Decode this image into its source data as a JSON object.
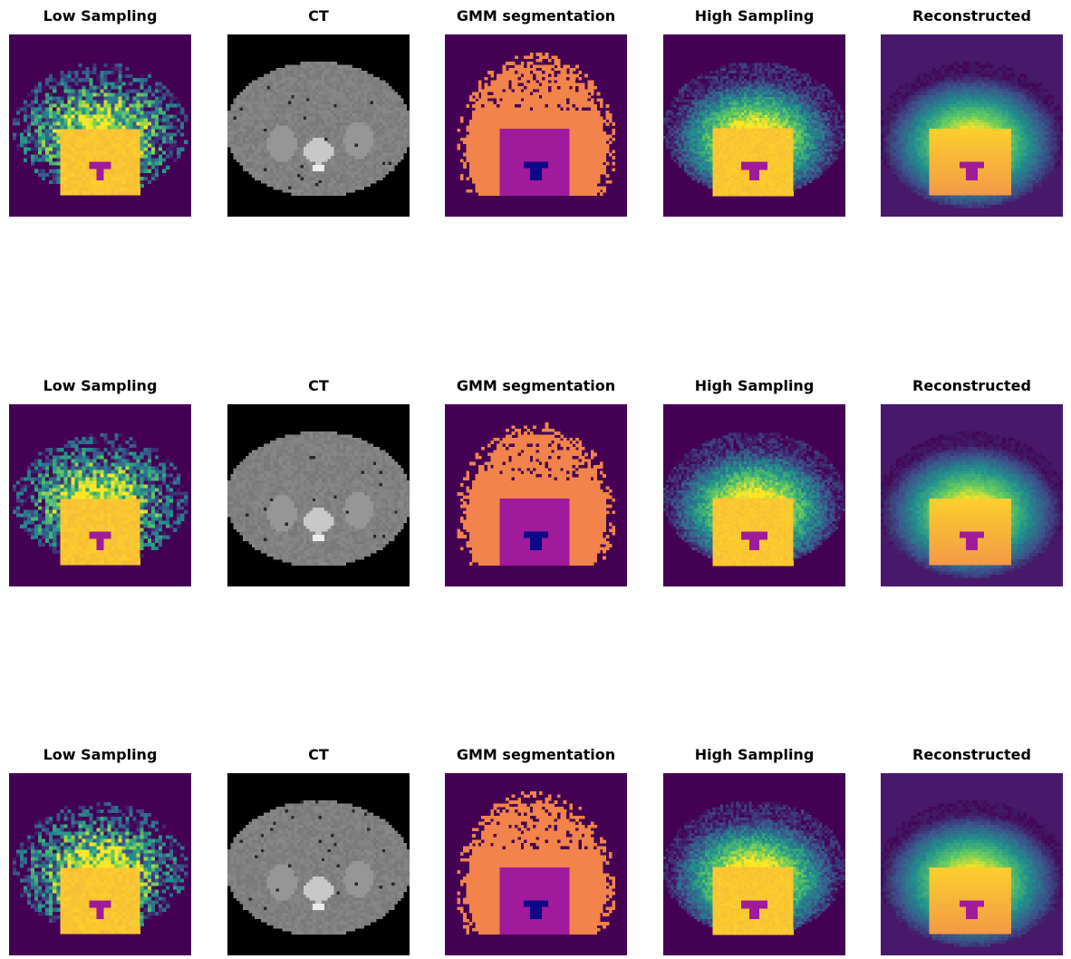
{
  "figure": {
    "rows": [
      {
        "panels": [
          {
            "title": "Low Sampling",
            "kind": "low"
          },
          {
            "title": "CT",
            "kind": "ct"
          },
          {
            "title": "GMM segmentation",
            "kind": "gmm"
          },
          {
            "title": "High Sampling",
            "kind": "high"
          },
          {
            "title": "Reconstructed",
            "kind": "recon"
          }
        ]
      },
      {
        "panels": [
          {
            "title": "Low Sampling",
            "kind": "low"
          },
          {
            "title": "CT",
            "kind": "ct"
          },
          {
            "title": "GMM segmentation",
            "kind": "gmm"
          },
          {
            "title": "High Sampling",
            "kind": "high"
          },
          {
            "title": "Reconstructed",
            "kind": "recon"
          }
        ]
      },
      {
        "panels": [
          {
            "title": "Low Sampling",
            "kind": "low"
          },
          {
            "title": "CT",
            "kind": "ct"
          },
          {
            "title": "GMM segmentation",
            "kind": "gmm"
          },
          {
            "title": "High Sampling",
            "kind": "high"
          },
          {
            "title": "Reconstructed",
            "kind": "recon"
          }
        ]
      }
    ]
  },
  "colors": {
    "viridis_bg": "#440154",
    "viridis_teal": "#21918c",
    "viridis_green": "#5ec962",
    "viridis_yellow": "#fde725",
    "inferno_orange": "#f1834b",
    "plasma_magenta": "#a01a9c",
    "plasma_blue": "#0d0887",
    "ct_black": "#000000",
    "ct_gray": "#808080",
    "ct_white": "#ffffff"
  }
}
